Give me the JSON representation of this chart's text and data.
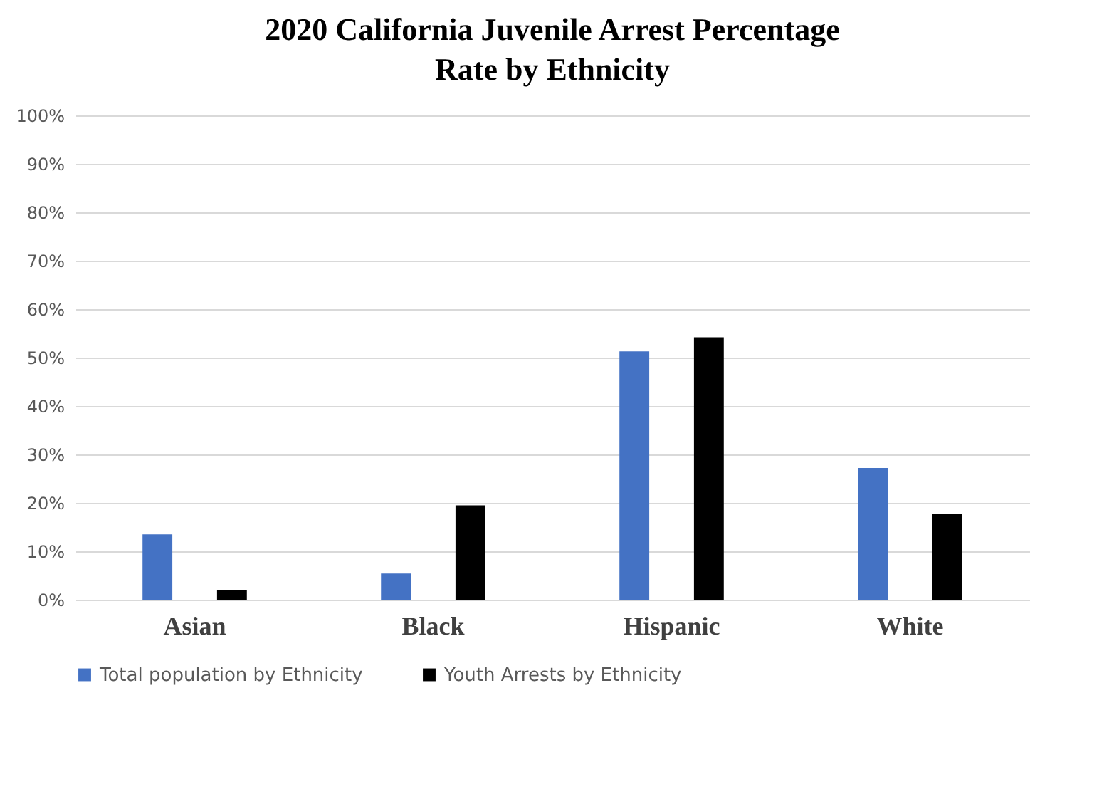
{
  "chart_data": {
    "type": "bar",
    "title": "2020 California Juvenile Arrest Percentage Rate by Ethnicity",
    "categories": [
      "Asian",
      "Black",
      "Hispanic",
      "White"
    ],
    "series": [
      {
        "name": "Total population by Ethnicity",
        "color": "#4472c4",
        "values": [
          13.5,
          5.4,
          51.3,
          27.2
        ]
      },
      {
        "name": "Youth Arrests by Ethnicity",
        "color": "#000000",
        "values": [
          2,
          19.5,
          54.2,
          17.7
        ]
      }
    ],
    "ylim": [
      0,
      100
    ],
    "yticks": [
      {
        "value": 0,
        "label": "0%"
      },
      {
        "value": 10,
        "label": "10%"
      },
      {
        "value": 20,
        "label": "20%"
      },
      {
        "value": 30,
        "label": "30%"
      },
      {
        "value": 40,
        "label": "40%"
      },
      {
        "value": 50,
        "label": "50%"
      },
      {
        "value": 60,
        "label": "60%"
      },
      {
        "value": 70,
        "label": "70%"
      },
      {
        "value": 80,
        "label": "80%"
      },
      {
        "value": 90,
        "label": "90%"
      },
      {
        "value": 100,
        "label": "100%"
      }
    ],
    "grid": "y",
    "legend": "bottom"
  }
}
